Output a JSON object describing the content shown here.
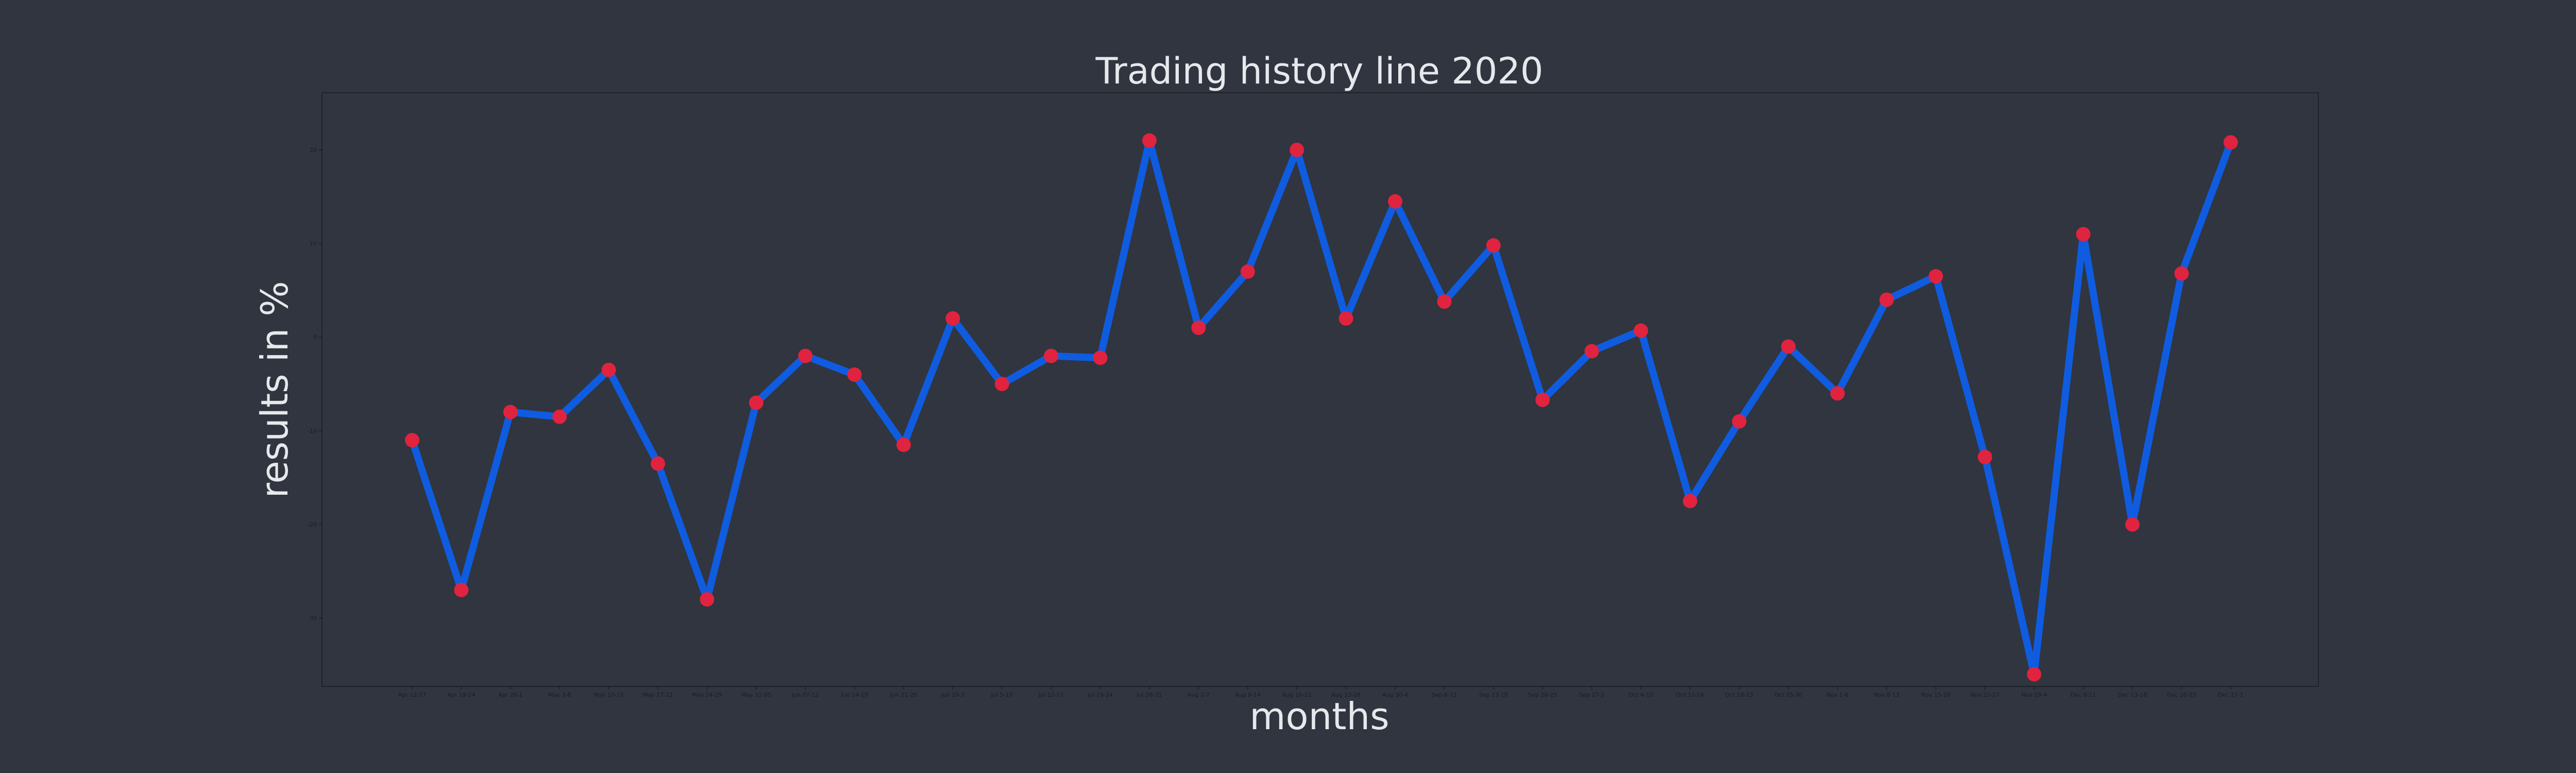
{
  "chart_data": {
    "type": "line",
    "title": "Trading history line 2020",
    "xlabel": "months",
    "ylabel": "results in %",
    "grid": false,
    "categories": [
      "Apr 12-17",
      "Apr 19-24",
      "Apr 26-1",
      "May 3-8",
      "May 10-15",
      "May 17-22",
      "May 24-29",
      "May 31-05",
      "Jun 07-12",
      "Jun 14-19",
      "Jun 21-26",
      "Jun 28-3",
      "Jul 5-10",
      "Jul 12-17",
      "Jul 19-24",
      "Jul 26-31",
      "Aug 2-7",
      "Aug 9-14",
      "Aug 16-21",
      "Aug 23-28",
      "Aug 30-4",
      "Sep 6-11",
      "Sep 13-18",
      "Sep 20-25",
      "Sep 27-2",
      "Oct 4-10",
      "Oct 11-16",
      "Oct 18-23",
      "Oct 25-30",
      "Nov 1-6",
      "Nov 8-13",
      "Nov 15-20",
      "Nov 22-27",
      "Nov 29-4",
      "Dec 6-11",
      "Dec 13-18",
      "Dec 20-25",
      "Dec 27-1"
    ],
    "values": [
      -11,
      -27,
      -8,
      -8.5,
      -3.5,
      -13.5,
      -28,
      -7,
      -2,
      -4,
      -11.5,
      2,
      -5,
      -2,
      -2.2,
      21,
      1,
      7,
      20,
      2,
      14.5,
      3.8,
      9.8,
      -6.7,
      -1.5,
      0.7,
      -17.5,
      -9,
      -1,
      -6,
      4,
      6.5,
      -12.8,
      -36,
      11,
      -20,
      6.8,
      20.8
    ],
    "ytick_values": [
      -30,
      -20,
      -10,
      0,
      10,
      20
    ],
    "ytick_labels": [
      "-30",
      "-20",
      "-10",
      "0",
      "10",
      "20"
    ],
    "ylim": [
      -37.3,
      26.1
    ],
    "colors": {
      "background": "#30353f",
      "line": "#0f5ce0",
      "marker": "#e0233e"
    }
  }
}
